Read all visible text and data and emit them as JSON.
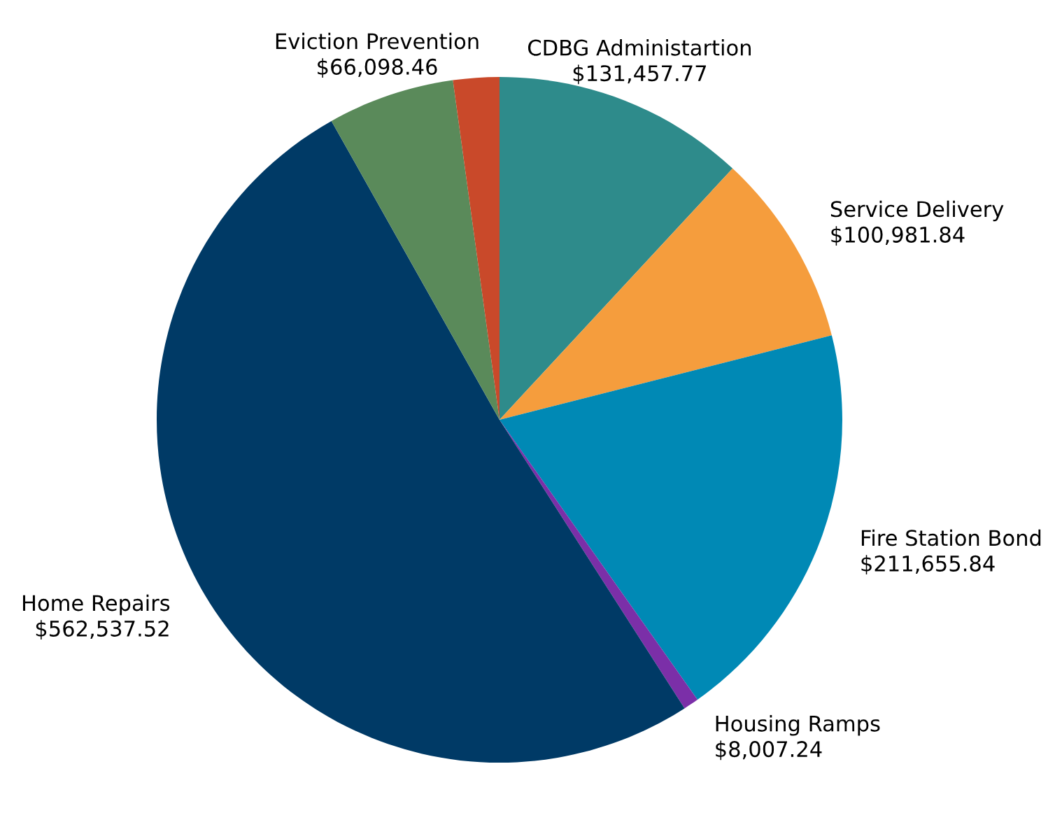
{
  "chart_data": {
    "type": "pie",
    "categories": [
      "CDBG Administartion",
      "Service Delivery",
      "Fire Station Bond",
      "Housing Ramps",
      "Home Repairs",
      "Eviction Prevention",
      null
    ],
    "values": [
      131457.77,
      100981.84,
      211655.84,
      8007.24,
      562537.52,
      66098.46,
      24000
    ],
    "value_labels": [
      "$131,457.77",
      "$100,981.84",
      "$211,655.84",
      "$8,007.24",
      "$562,537.52",
      "$66,098.46",
      null
    ],
    "colors": [
      "#2e8b8b",
      "#f59d3d",
      "#0089b5",
      "#7b2fa8",
      "#003a66",
      "#5a8a5a",
      "#c9492a"
    ],
    "legend": false
  }
}
